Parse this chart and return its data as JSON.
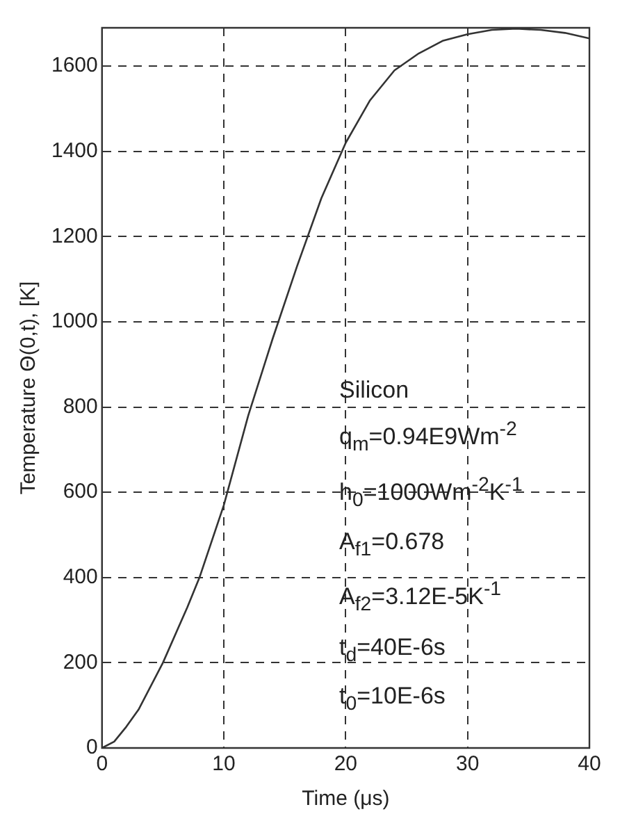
{
  "chart_data": {
    "type": "line",
    "xlabel": "Time (μs)",
    "ylabel": "Temperature Θ(0,t), [K]",
    "x": [
      0,
      1,
      2,
      3,
      5,
      7,
      8,
      10,
      12,
      14,
      16,
      18,
      20,
      22,
      24,
      26,
      28,
      30,
      32,
      34,
      36,
      38,
      40
    ],
    "series": [
      {
        "color": "#333333",
        "values": [
          0,
          15,
          50,
          90,
          200,
          330,
          400,
          570,
          780,
          960,
          1130,
          1290,
          1420,
          1520,
          1590,
          1630,
          1660,
          1675,
          1685,
          1688,
          1685,
          1678,
          1665
        ]
      }
    ],
    "xlim": [
      0,
      40
    ],
    "xticks": [
      0,
      10,
      20,
      30,
      40
    ],
    "ylim": [
      0,
      1690
    ],
    "yticks": [
      0,
      200,
      400,
      600,
      800,
      1000,
      1200,
      1400,
      1600
    ],
    "grid": true,
    "line_style": "solid",
    "marker": "none",
    "legend": false,
    "annotations": [
      "Silicon",
      "q$_{m}$=0.94E9Wm$^{-2}$",
      "h$_{0}$=1000Wm$^{-2}$K$^{-1}$",
      "A$_{f1}$=0.678",
      "A$_{f2}$=3.12E-5K$^{-1}$",
      "t$_{d}$=40E-6s",
      "t$_{0}$=10E-6s"
    ]
  }
}
